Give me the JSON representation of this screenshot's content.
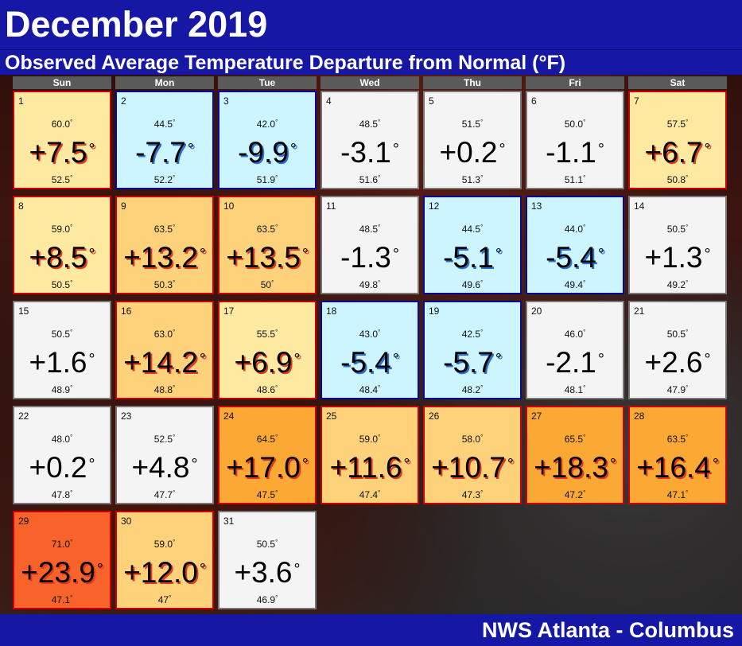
{
  "title": "December 2019",
  "subtitle": "Observed Average Temperature Departure from Normal (°F)",
  "footer": "NWS Atlanta - Columbus",
  "weekdays": [
    "Sun",
    "Mon",
    "Tue",
    "Wed",
    "Thu",
    "Fri",
    "Sat"
  ],
  "colors": {
    "header_blue": "#1717a6",
    "warm_border": "#cc0000",
    "cool_border": "#0a0a9a",
    "cool_fill": "#ccf5ff",
    "neutral_fill": "#f4f4f4",
    "warm_light_fill": "#fde9a0",
    "warm_mid_fill": "#fdd27a",
    "warm_strong_fill": "#fba834",
    "warm_extreme_fill": "#f7632a"
  },
  "chart_data": {
    "type": "table",
    "title": "December 2019",
    "subtitle": "Observed Average Temperature Departure from Normal (°F)",
    "first_weekday": "Sun",
    "days": [
      {
        "day": "1",
        "high": "60.0",
        "departure": "+7.5",
        "normal": "52.5",
        "value": 7.5
      },
      {
        "day": "2",
        "high": "44.5",
        "departure": "-7.7",
        "normal": "52.2",
        "value": -7.7
      },
      {
        "day": "3",
        "high": "42.0",
        "departure": "-9.9",
        "normal": "51.9",
        "value": -9.9
      },
      {
        "day": "4",
        "high": "48.5",
        "departure": "-3.1",
        "normal": "51.6",
        "value": -3.1
      },
      {
        "day": "5",
        "high": "51.5",
        "departure": "+0.2",
        "normal": "51.3",
        "value": 0.2
      },
      {
        "day": "6",
        "high": "50.0",
        "departure": "-1.1",
        "normal": "51.1",
        "value": -1.1
      },
      {
        "day": "7",
        "high": "57.5",
        "departure": "+6.7",
        "normal": "50.8",
        "value": 6.7
      },
      {
        "day": "8",
        "high": "59.0",
        "departure": "+8.5",
        "normal": "50.5",
        "value": 8.5
      },
      {
        "day": "9",
        "high": "63.5",
        "departure": "+13.2",
        "normal": "50.3",
        "value": 13.2
      },
      {
        "day": "10",
        "high": "63.5",
        "departure": "+13.5",
        "normal": "50",
        "value": 13.5
      },
      {
        "day": "11",
        "high": "48.5",
        "departure": "-1.3",
        "normal": "49.8",
        "value": -1.3
      },
      {
        "day": "12",
        "high": "44.5",
        "departure": "-5.1",
        "normal": "49.6",
        "value": -5.1
      },
      {
        "day": "13",
        "high": "44.0",
        "departure": "-5.4",
        "normal": "49.4",
        "value": -5.4
      },
      {
        "day": "14",
        "high": "50.5",
        "departure": "+1.3",
        "normal": "49.2",
        "value": 1.3
      },
      {
        "day": "15",
        "high": "50.5",
        "departure": "+1.6",
        "normal": "48.9",
        "value": 1.6
      },
      {
        "day": "16",
        "high": "63.0",
        "departure": "+14.2",
        "normal": "48.8",
        "value": 14.2
      },
      {
        "day": "17",
        "high": "55.5",
        "departure": "+6.9",
        "normal": "48.6",
        "value": 6.9
      },
      {
        "day": "18",
        "high": "43.0",
        "departure": "-5.4",
        "normal": "48.4",
        "value": -5.4
      },
      {
        "day": "19",
        "high": "42.5",
        "departure": "-5.7",
        "normal": "48.2",
        "value": -5.7
      },
      {
        "day": "20",
        "high": "46.0",
        "departure": "-2.1",
        "normal": "48.1",
        "value": -2.1
      },
      {
        "day": "21",
        "high": "50.5",
        "departure": "+2.6",
        "normal": "47.9",
        "value": 2.6
      },
      {
        "day": "22",
        "high": "48.0",
        "departure": "+0.2",
        "normal": "47.8",
        "value": 0.2
      },
      {
        "day": "23",
        "high": "52.5",
        "departure": "+4.8",
        "normal": "47.7",
        "value": 4.8
      },
      {
        "day": "24",
        "high": "64.5",
        "departure": "+17.0",
        "normal": "47.5",
        "value": 17.0
      },
      {
        "day": "25",
        "high": "59.0",
        "departure": "+11.6",
        "normal": "47.4",
        "value": 11.6
      },
      {
        "day": "26",
        "high": "58.0",
        "departure": "+10.7",
        "normal": "47.3",
        "value": 10.7
      },
      {
        "day": "27",
        "high": "65.5",
        "departure": "+18.3",
        "normal": "47.2",
        "value": 18.3
      },
      {
        "day": "28",
        "high": "63.5",
        "departure": "+16.4",
        "normal": "47.1",
        "value": 16.4
      },
      {
        "day": "29",
        "high": "71.0",
        "departure": "+23.9",
        "normal": "47.1",
        "value": 23.9
      },
      {
        "day": "30",
        "high": "59.0",
        "departure": "+12.0",
        "normal": "47",
        "value": 12.0
      },
      {
        "day": "31",
        "high": "50.5",
        "departure": "+3.6",
        "normal": "46.9",
        "value": 3.6
      }
    ]
  }
}
